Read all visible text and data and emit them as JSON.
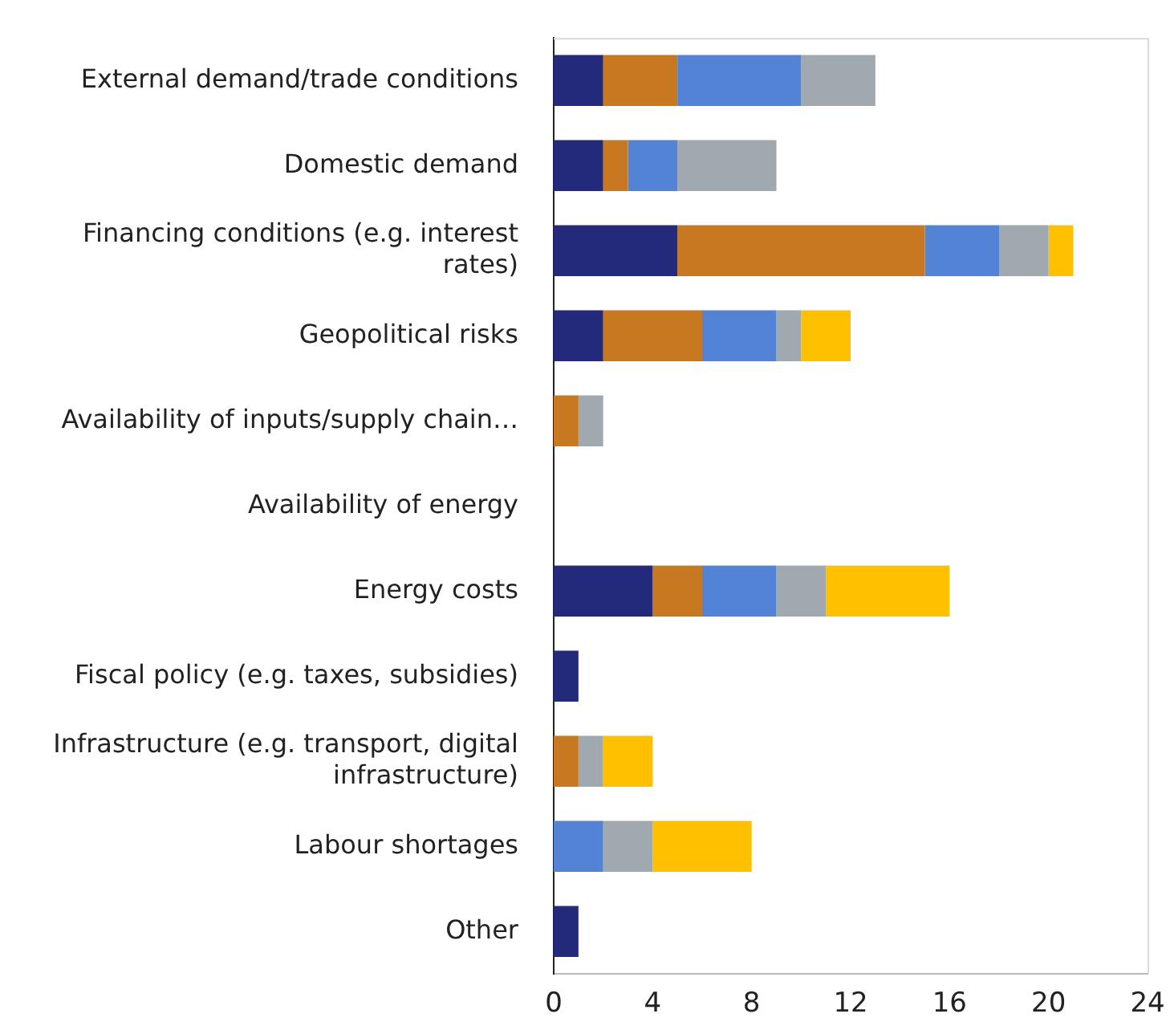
{
  "chart_data": {
    "type": "bar",
    "orientation": "horizontal",
    "stacked": true,
    "grid": false,
    "legend": false,
    "categories": [
      "External demand/trade conditions",
      "Domestic demand",
      "Financing conditions (e.g. interest rates)",
      "Geopolitical risks",
      "Availability of inputs/supply chain…",
      "Availability of energy",
      "Energy costs",
      "Fiscal policy (e.g. taxes, subsidies)",
      "Infrastructure (e.g. transport, digital infrastructure)",
      "Labour shortages",
      "Other"
    ],
    "series": [
      {
        "color": "#232a7c",
        "values": [
          2,
          2,
          5,
          2,
          0,
          0,
          4,
          1,
          0,
          0,
          1
        ]
      },
      {
        "color": "#c87820",
        "values": [
          3,
          1,
          10,
          4,
          1,
          0,
          2,
          0,
          1,
          0,
          0
        ]
      },
      {
        "color": "#5283d4",
        "values": [
          5,
          2,
          3,
          3,
          0,
          0,
          3,
          0,
          0,
          2,
          0
        ]
      },
      {
        "color": "#a0a8b0",
        "values": [
          3,
          4,
          2,
          1,
          1,
          0,
          2,
          0,
          1,
          2,
          0
        ]
      },
      {
        "color": "#ffc000",
        "values": [
          0,
          0,
          1,
          2,
          0,
          0,
          5,
          0,
          2,
          4,
          0
        ]
      }
    ],
    "xlim": [
      0,
      24
    ],
    "xticks": [
      0,
      4,
      8,
      12,
      16,
      20,
      24
    ]
  }
}
